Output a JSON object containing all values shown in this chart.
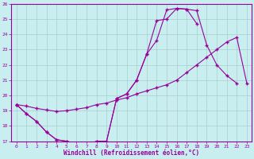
{
  "xlabel": "Windchill (Refroidissement éolien,°C)",
  "bg_color": "#c8eef0",
  "line_color": "#990099",
  "grid_color": "#aacccc",
  "xlim": [
    -0.5,
    23.5
  ],
  "ylim": [
    17,
    26
  ],
  "xticks": [
    0,
    1,
    2,
    3,
    4,
    5,
    6,
    7,
    8,
    9,
    10,
    11,
    12,
    13,
    14,
    15,
    16,
    17,
    18,
    19,
    20,
    21,
    22,
    23
  ],
  "yticks": [
    17,
    18,
    19,
    20,
    21,
    22,
    23,
    24,
    25,
    26
  ],
  "line1_x": [
    0,
    1,
    2,
    3,
    4,
    5,
    6,
    7,
    8,
    9,
    10,
    11,
    12,
    13,
    14,
    15,
    16,
    17,
    18,
    19,
    20,
    21,
    22
  ],
  "line1_y": [
    19.4,
    18.8,
    18.3,
    17.6,
    17.1,
    17.0,
    16.85,
    16.75,
    17.0,
    17.0,
    19.8,
    20.1,
    21.0,
    22.7,
    23.6,
    25.6,
    25.7,
    25.65,
    25.55,
    23.3,
    22.0,
    21.3,
    20.8
  ],
  "line2_x": [
    0,
    1,
    2,
    3,
    4,
    5,
    6,
    7,
    8,
    9,
    10,
    11,
    12,
    13,
    14,
    15,
    16,
    17,
    18,
    19,
    20,
    21,
    22,
    23
  ],
  "line2_y": [
    19.4,
    19.3,
    19.15,
    19.05,
    18.95,
    19.0,
    19.1,
    19.2,
    19.4,
    19.5,
    19.7,
    19.85,
    20.1,
    20.3,
    20.5,
    20.7,
    21.0,
    21.5,
    22.0,
    22.5,
    23.0,
    23.5,
    23.8,
    20.8
  ],
  "line3_x": [
    0,
    1,
    2,
    3,
    4,
    5,
    6,
    7,
    8,
    9,
    10,
    11,
    12,
    13,
    14,
    15,
    16,
    17,
    18
  ],
  "line3_y": [
    19.4,
    18.8,
    18.3,
    17.6,
    17.1,
    17.0,
    16.85,
    16.75,
    17.0,
    17.0,
    19.8,
    20.1,
    21.0,
    22.7,
    24.9,
    25.0,
    25.7,
    25.65,
    24.7
  ]
}
